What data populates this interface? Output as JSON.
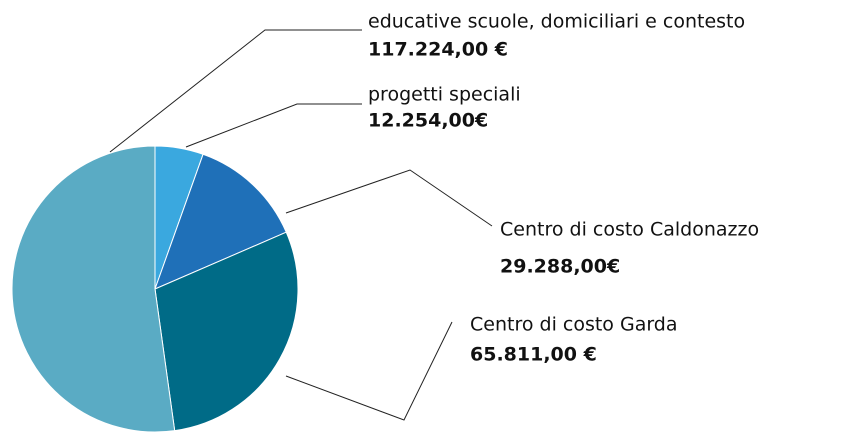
{
  "chart_data": {
    "type": "pie",
    "categories": [
      "progetti speciali",
      "Centro di costo Caldonazzo",
      "Centro di costo Garda",
      "educative scuole, domiciliari e contesto"
    ],
    "values": [
      12254,
      29288,
      65811,
      117224
    ],
    "value_labels": [
      "12.254,00€",
      "29.288,00€",
      "65.811,00 €",
      "117.224,00 €"
    ],
    "colors": [
      "#3aa8df",
      "#1f70b8",
      "#006b87",
      "#5aabc4"
    ]
  }
}
